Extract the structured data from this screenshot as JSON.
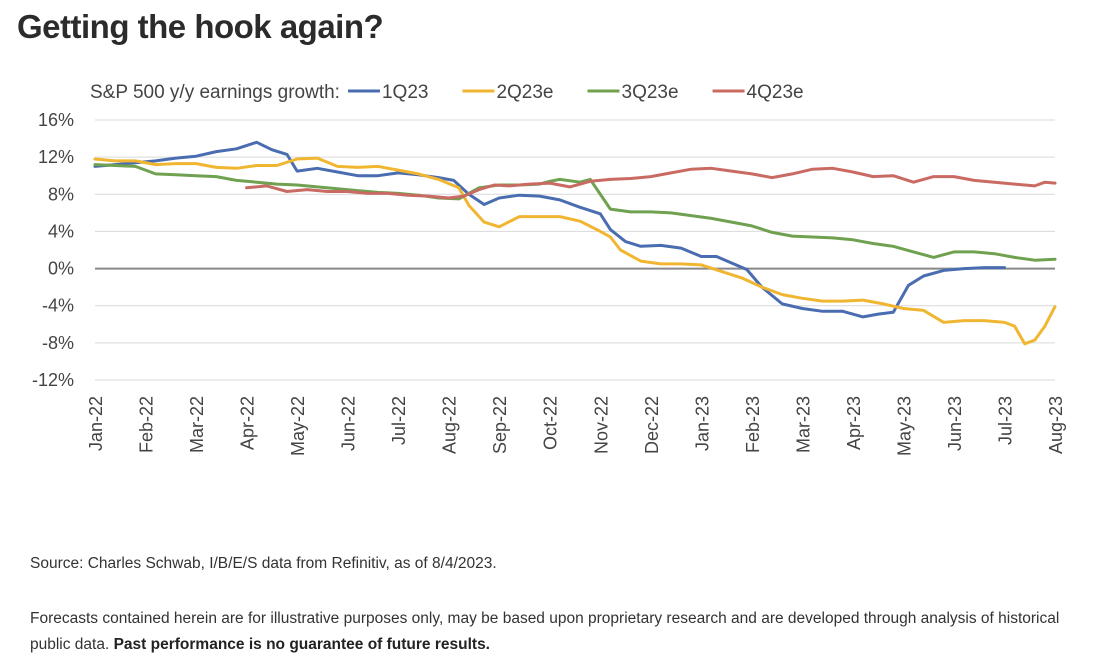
{
  "headline": "Getting the hook again?",
  "chart_data": {
    "type": "line",
    "legend_title": "S&P 500 y/y earnings growth:",
    "legend_placement": "top",
    "ylim": [
      -12,
      16
    ],
    "yticks": [
      16,
      12,
      8,
      4,
      0,
      -4,
      -8,
      -12
    ],
    "ytick_labels": [
      "16%",
      "12%",
      "8%",
      "4%",
      "0%",
      "-4%",
      "-8%",
      "-12%"
    ],
    "x_domain": [
      0,
      19
    ],
    "xtick_labels": [
      "Jan-22",
      "Feb-22",
      "Mar-22",
      "Apr-22",
      "May-22",
      "Jun-22",
      "Jul-22",
      "Aug-22",
      "Sep-22",
      "Oct-22",
      "Nov-22",
      "Dec-22",
      "Jan-23",
      "Feb-23",
      "Mar-23",
      "Apr-23",
      "May-23",
      "Jun-23",
      "Jul-23",
      "Aug-23"
    ],
    "grid": true,
    "series": [
      {
        "name": "1Q23",
        "color": "#4a6cb0",
        "x": [
          0,
          0.4,
          0.8,
          1.2,
          1.6,
          2,
          2.4,
          2.8,
          3.2,
          3.5,
          3.8,
          4,
          4.4,
          4.8,
          5.2,
          5.6,
          6,
          6.4,
          6.8,
          7.1,
          7.4,
          7.7,
          8,
          8.4,
          8.8,
          9.2,
          9.6,
          10,
          10.2,
          10.5,
          10.8,
          11.2,
          11.6,
          12,
          12.3,
          12.6,
          12.9,
          13.2,
          13.6,
          14,
          14.4,
          14.8,
          15.2,
          15.5,
          15.8,
          16.1,
          16.4,
          16.8,
          17.2,
          17.6,
          18
        ],
        "y": [
          11,
          11.2,
          11.4,
          11.6,
          11.9,
          12.1,
          12.6,
          12.9,
          13.6,
          12.8,
          12.3,
          10.5,
          10.8,
          10.4,
          10,
          10,
          10.3,
          10.1,
          9.8,
          9.5,
          8,
          6.9,
          7.6,
          7.9,
          7.8,
          7.4,
          6.6,
          5.9,
          4.2,
          2.9,
          2.4,
          2.5,
          2.2,
          1.3,
          1.3,
          0.6,
          -0.1,
          -2,
          -3.8,
          -4.3,
          -4.6,
          -4.6,
          -5.2,
          -4.9,
          -4.7,
          -1.8,
          -0.8,
          -0.2,
          0,
          0.1,
          0.1
        ]
      },
      {
        "name": "2Q23e",
        "color": "#f0b632",
        "x": [
          0,
          0.4,
          0.8,
          1.2,
          1.6,
          2,
          2.4,
          2.8,
          3.2,
          3.6,
          4,
          4.4,
          4.8,
          5.2,
          5.6,
          6,
          6.4,
          6.8,
          7.2,
          7.4,
          7.7,
          8,
          8.4,
          8.8,
          9.2,
          9.6,
          10,
          10.2,
          10.4,
          10.8,
          11.2,
          11.6,
          12,
          12.4,
          12.8,
          13.2,
          13.6,
          14,
          14.4,
          14.8,
          15.2,
          15.6,
          16,
          16.4,
          16.8,
          17.2,
          17.6,
          18,
          18.2,
          18.4,
          18.6,
          18.8,
          19
        ],
        "y": [
          11.8,
          11.6,
          11.6,
          11.2,
          11.3,
          11.3,
          10.9,
          10.8,
          11.1,
          11.1,
          11.8,
          11.9,
          11,
          10.9,
          11,
          10.6,
          10.2,
          9.6,
          8.7,
          6.8,
          5,
          4.5,
          5.6,
          5.6,
          5.6,
          5.1,
          4,
          3.4,
          2,
          0.8,
          0.5,
          0.5,
          0.4,
          -0.3,
          -1,
          -2,
          -2.8,
          -3.2,
          -3.5,
          -3.5,
          -3.4,
          -3.8,
          -4.3,
          -4.5,
          -5.8,
          -5.6,
          -5.6,
          -5.8,
          -6.2,
          -8.1,
          -7.7,
          -6.2,
          -4.1
        ]
      },
      {
        "name": "3Q23e",
        "color": "#6fa150",
        "x": [
          0,
          0.4,
          0.8,
          1.2,
          1.6,
          2,
          2.4,
          2.8,
          3.2,
          3.6,
          4,
          4.4,
          4.8,
          5.2,
          5.6,
          6,
          6.4,
          6.8,
          7.2,
          7.6,
          8,
          8.4,
          8.8,
          9,
          9.2,
          9.6,
          9.8,
          10.2,
          10.6,
          11,
          11.4,
          11.8,
          12.2,
          12.6,
          13,
          13.4,
          13.8,
          14.2,
          14.6,
          15,
          15.4,
          15.8,
          16.2,
          16.6,
          17,
          17.4,
          17.8,
          18.2,
          18.6,
          19
        ],
        "y": [
          11.2,
          11.1,
          11,
          10.2,
          10.1,
          10,
          9.9,
          9.5,
          9.3,
          9.1,
          9,
          8.8,
          8.6,
          8.4,
          8.2,
          8.1,
          7.9,
          7.6,
          7.5,
          8.7,
          9,
          9,
          9.1,
          9.4,
          9.6,
          9.3,
          9.6,
          6.4,
          6.1,
          6.1,
          6,
          5.7,
          5.4,
          5,
          4.6,
          3.9,
          3.5,
          3.4,
          3.3,
          3.1,
          2.7,
          2.4,
          1.8,
          1.2,
          1.8,
          1.8,
          1.6,
          1.2,
          0.9,
          1
        ]
      },
      {
        "name": "4Q23e",
        "color": "#c96a63",
        "x": [
          3,
          3.4,
          3.8,
          4.2,
          4.6,
          5,
          5.4,
          5.8,
          6.2,
          6.6,
          7,
          7.3,
          7.6,
          7.9,
          8.2,
          8.6,
          9,
          9.4,
          9.8,
          10.2,
          10.6,
          11,
          11.4,
          11.8,
          12.2,
          12.6,
          13,
          13.4,
          13.8,
          14.2,
          14.6,
          15,
          15.4,
          15.8,
          16.2,
          16.6,
          17,
          17.4,
          17.8,
          18.2,
          18.6,
          18.8,
          19
        ],
        "y": [
          8.7,
          8.9,
          8.3,
          8.5,
          8.3,
          8.3,
          8.1,
          8.1,
          7.9,
          7.8,
          7.6,
          7.8,
          8.5,
          9,
          8.9,
          9.1,
          9.2,
          8.8,
          9.4,
          9.6,
          9.7,
          9.9,
          10.3,
          10.7,
          10.8,
          10.5,
          10.2,
          9.8,
          10.2,
          10.7,
          10.8,
          10.4,
          9.9,
          10,
          9.3,
          9.9,
          9.9,
          9.5,
          9.3,
          9.1,
          8.9,
          9.3,
          9.2
        ]
      }
    ]
  },
  "source_text": "Source: Charles Schwab, I/B/E/S data from Refinitiv, as of 8/4/2023.",
  "disclaimer_text": "Forecasts contained herein are for illustrative purposes only, may be based upon proprietary research and are developed through analysis of historical public data.",
  "disclaimer_bold": "Past performance is no guarantee of future results."
}
